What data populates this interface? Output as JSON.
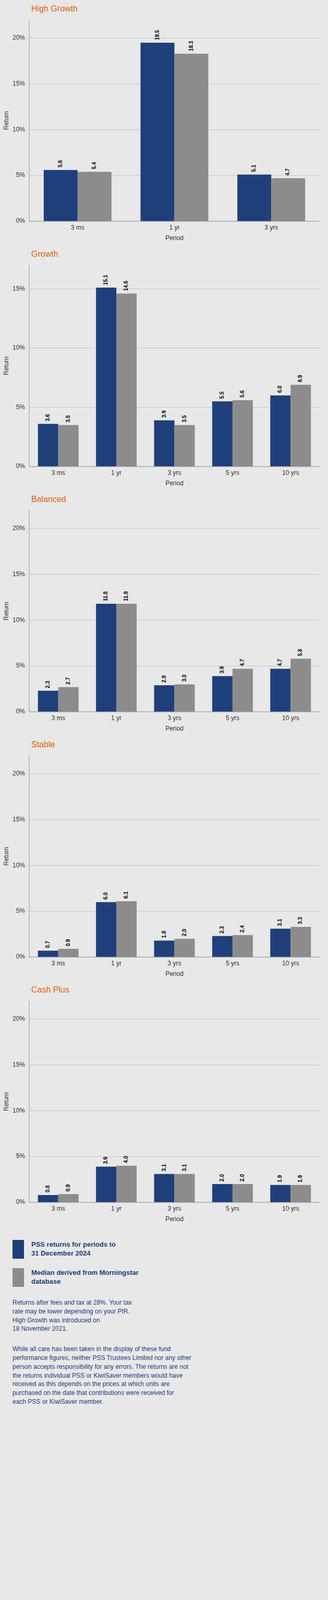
{
  "chart_data": [
    {
      "type": "bar",
      "title": "High Growth",
      "x_label": "Period",
      "y_label": "Return",
      "categories": [
        "3 ms",
        "1 yr",
        "3 yrs"
      ],
      "series": [
        {
          "color": "#1f3f7a",
          "values": [
            5.6,
            19.5,
            5.1
          ],
          "value_labels": [
            "5.6",
            "19.5",
            "5.1"
          ]
        },
        {
          "color": "#8c8c8c",
          "values": [
            5.4,
            18.3,
            4.7
          ],
          "value_labels": [
            "5.4",
            "18.3",
            "4.7"
          ]
        }
      ],
      "ylim": [
        0,
        22
      ],
      "yticks": [
        {
          "value": 0,
          "label": "0%"
        },
        {
          "value": 5,
          "label": "5%"
        },
        {
          "value": 10,
          "label": "10%"
        },
        {
          "value": 15,
          "label": "15%"
        },
        {
          "value": 20,
          "label": "20%"
        }
      ],
      "grid": true,
      "data_labels": true
    },
    {
      "type": "bar",
      "title": "Growth",
      "x_label": "Period",
      "y_label": "Return",
      "categories": [
        "3 ms",
        "1 yr",
        "3 yrs",
        "5 yrs",
        "10 yrs"
      ],
      "series": [
        {
          "color": "#1f3f7a",
          "values": [
            3.6,
            15.1,
            3.9,
            5.5,
            6.0
          ],
          "value_labels": [
            "3.6",
            "15.1",
            "3.9",
            "5.5",
            "6.0"
          ]
        },
        {
          "color": "#8c8c8c",
          "values": [
            3.5,
            14.6,
            3.5,
            5.6,
            6.9
          ],
          "value_labels": [
            "3.5",
            "14.6",
            "3.5",
            "5.6",
            "6.9"
          ]
        }
      ],
      "ylim": [
        0,
        17
      ],
      "yticks": [
        {
          "value": 0,
          "label": "0%"
        },
        {
          "value": 5,
          "label": "5%"
        },
        {
          "value": 10,
          "label": "10%"
        },
        {
          "value": 15,
          "label": "15%"
        }
      ],
      "grid": true,
      "data_labels": true
    },
    {
      "type": "bar",
      "title": "Balanced",
      "x_label": "Period",
      "y_label": "Return",
      "categories": [
        "3 ms",
        "1 yr",
        "3 yrs",
        "5 yrs",
        "10 yrs"
      ],
      "series": [
        {
          "color": "#1f3f7a",
          "values": [
            2.3,
            11.8,
            2.9,
            3.9,
            4.7
          ],
          "value_labels": [
            "2.3",
            "11.8",
            "2.9",
            "3.9",
            "4.7"
          ]
        },
        {
          "color": "#8c8c8c",
          "values": [
            2.7,
            11.8,
            3.0,
            4.7,
            5.8
          ],
          "value_labels": [
            "2.7",
            "11.8",
            "3.0",
            "4.7",
            "5.8"
          ]
        }
      ],
      "ylim": [
        0,
        22
      ],
      "yticks": [
        {
          "value": 0,
          "label": "0%"
        },
        {
          "value": 5,
          "label": "5%"
        },
        {
          "value": 10,
          "label": "10%"
        },
        {
          "value": 15,
          "label": "15%"
        },
        {
          "value": 20,
          "label": "20%"
        }
      ],
      "grid": true,
      "data_labels": true
    },
    {
      "type": "bar",
      "title": "Stable",
      "x_label": "Period",
      "y_label": "Return",
      "categories": [
        "3 ms",
        "1 yr",
        "3 yrs",
        "5 yrs",
        "10 yrs"
      ],
      "series": [
        {
          "color": "#1f3f7a",
          "values": [
            0.7,
            6.0,
            1.8,
            2.3,
            3.1
          ],
          "value_labels": [
            "0.7",
            "6.0",
            "1.8",
            "2.3",
            "3.1"
          ]
        },
        {
          "color": "#8c8c8c",
          "values": [
            0.9,
            6.1,
            2.0,
            2.4,
            3.3
          ],
          "value_labels": [
            "0.9",
            "6.1",
            "2.0",
            "2.4",
            "3.3"
          ]
        }
      ],
      "ylim": [
        0,
        22
      ],
      "yticks": [
        {
          "value": 0,
          "label": "0%"
        },
        {
          "value": 5,
          "label": "5%"
        },
        {
          "value": 10,
          "label": "10%"
        },
        {
          "value": 15,
          "label": "15%"
        },
        {
          "value": 20,
          "label": "20%"
        }
      ],
      "grid": true,
      "data_labels": true
    },
    {
      "type": "bar",
      "title": "Cash Plus",
      "x_label": "Period",
      "y_label": "Return",
      "categories": [
        "3 ms",
        "1 yr",
        "3 yrs",
        "5 yrs",
        "10 yrs"
      ],
      "series": [
        {
          "name": "PSS returns for periods to\n31 December 2024",
          "color": "#1f3f7a",
          "values": [
            0.8,
            3.9,
            3.1,
            2.0,
            1.9
          ],
          "value_labels": [
            "0.8",
            "3.9",
            "3.1",
            "2.0",
            "1.9"
          ]
        },
        {
          "name": "Median derived from Morningstar\ndatabase",
          "color": "#8c8c8c",
          "values": [
            0.9,
            4.0,
            3.1,
            2.0,
            1.9
          ],
          "value_labels": [
            "0.9",
            "4.0",
            "3.1",
            "2.0",
            "1.9"
          ]
        }
      ],
      "ylim": [
        0,
        22
      ],
      "yticks": [
        {
          "value": 0,
          "label": "0%"
        },
        {
          "value": 5,
          "label": "5%"
        },
        {
          "value": 10,
          "label": "10%"
        },
        {
          "value": 15,
          "label": "15%"
        },
        {
          "value": 20,
          "label": "20%"
        }
      ],
      "grid": true,
      "data_labels": true,
      "legend": "bottom",
      "annotations": [
        "Returns after fees and tax at 28%. Your tax\nrate may be lower depending on your PIR.\nHigh Growth was introduced on\n18 November 2021.",
        "While all care has been taken in the display of these fund\nperformance figures, neither PSS Trustees Limited nor any other\nperson accepts responsibility for any errors. The returns are not\nthe returns individual PSS or KiwiSaver members would have\nreceived as this depends on the prices at which units are\npurchased on the date that contributions were received for\neach PSS or KiwiSaver member."
      ]
    }
  ]
}
